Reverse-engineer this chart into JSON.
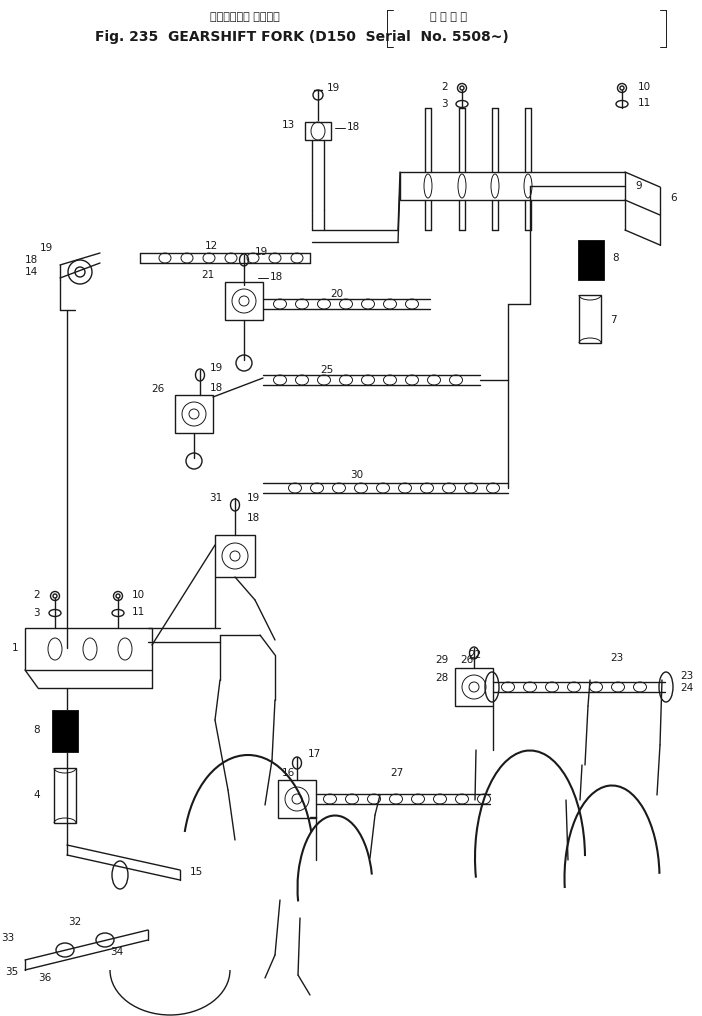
{
  "title_line1_left": "ギヤーシフト フォーク",
  "title_line1_right": "適 用 号 機",
  "title_line2": "Fig. 235  GEARSHIFT FORK (D150  Serial  No. 5508~)",
  "bg_color": "#ffffff",
  "line_color": "#1a1a1a",
  "figsize": [
    7.02,
    10.16
  ],
  "dpi": 100
}
